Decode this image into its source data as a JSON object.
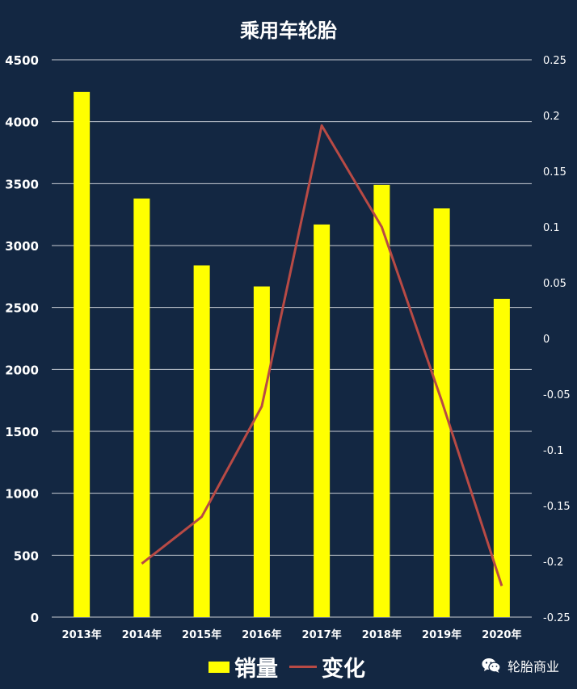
{
  "chart_data": {
    "type": "bar",
    "title": "乘用车轮胎",
    "categories": [
      "2013年",
      "2014年",
      "2015年",
      "2016年",
      "2017年",
      "2018年",
      "2019年",
      "2020年"
    ],
    "series": [
      {
        "name": "销量",
        "type": "bar",
        "axis": "left",
        "color": "#ffff00",
        "values": [
          4240,
          3380,
          2840,
          2670,
          3170,
          3490,
          3300,
          2570
        ]
      },
      {
        "name": "变化",
        "type": "line",
        "axis": "right",
        "color": "#b84a45",
        "values": [
          null,
          -0.202,
          -0.16,
          -0.061,
          0.191,
          0.1,
          -0.056,
          -0.222
        ]
      }
    ],
    "y_left": {
      "lim": [
        0,
        4500
      ],
      "ticks": [
        "0",
        "500",
        "1000",
        "1500",
        "2000",
        "2500",
        "3000",
        "3500",
        "4000",
        "4500"
      ]
    },
    "y_right": {
      "lim": [
        -0.25,
        0.25
      ],
      "ticks": [
        "-0.25",
        "-0.2",
        "-0.15",
        "-0.1",
        "-0.05",
        "0",
        "0.05",
        "0.1",
        "0.15",
        "0.2",
        "0.25"
      ]
    },
    "grid": true,
    "legend_position": "bottom"
  },
  "watermark": {
    "icon": "wechat-icon",
    "text": "轮胎商业"
  },
  "colors": {
    "background": "#132742",
    "grid": "#c8cdd4",
    "axis_text": "#ffffff"
  }
}
